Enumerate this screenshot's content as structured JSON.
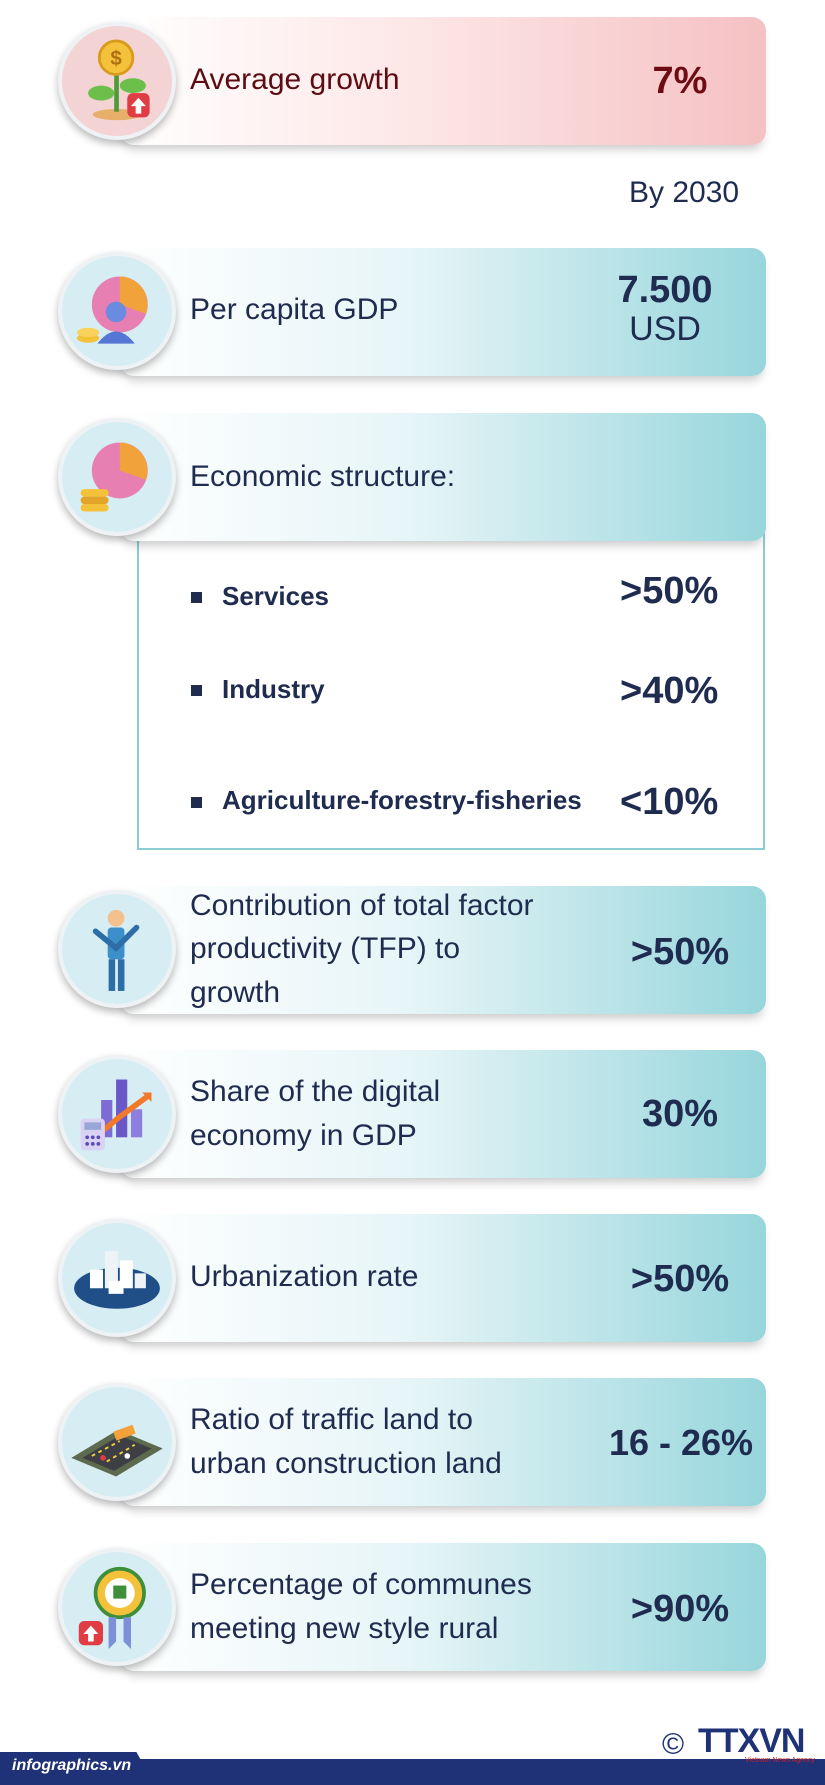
{
  "rows": {
    "average_growth": {
      "label": "Average growth",
      "value": "7%"
    },
    "by_year": "By 2030",
    "gdp_per_capita": {
      "label": "Per capita GDP",
      "value": "7.500",
      "unit": "USD"
    },
    "economic_structure": {
      "label": "Economic structure:",
      "items": [
        {
          "label": "Services",
          "value": ">50%"
        },
        {
          "label": "Industry",
          "value": ">40%"
        },
        {
          "label": "Agriculture-forestry-fisheries",
          "value": "<10%"
        }
      ]
    },
    "tfp": {
      "line1": "Contribution of total factor",
      "line2": "productivity (TFP) to",
      "line3": "growth",
      "value": ">50%"
    },
    "digital": {
      "line1": "Share of the digital",
      "line2": "economy in GDP",
      "value": "30%"
    },
    "urbanization": {
      "label": "Urbanization rate",
      "value": ">50%"
    },
    "traffic": {
      "line1": "Ratio of traffic land to",
      "line2": "urban construction land",
      "value": "16 - 26%"
    },
    "rural": {
      "line1": "Percentage of communes",
      "line2": "meeting new style rural",
      "value": ">90%"
    }
  },
  "footer": {
    "site": "infographics.vn",
    "copyright": "©",
    "logo": "TTXVN",
    "logo_sub": "Vietnam News Agency"
  },
  "icons": [
    "coin-plant-icon",
    "pie-chart-person-icon",
    "pie-chart-coins-icon",
    "worker-icon",
    "calculator-chart-icon",
    "city-buildings-icon",
    "road-traffic-icon",
    "rural-badge-icon"
  ]
}
